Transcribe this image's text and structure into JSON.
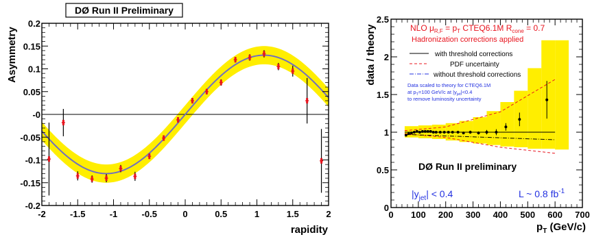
{
  "chart_data": [
    {
      "type": "scatter",
      "title": "DØ Run II Preliminary",
      "xlabel": "rapidity",
      "ylabel": "Asymmetry",
      "xlim": [
        -2,
        2
      ],
      "ylim": [
        -0.2,
        0.2
      ],
      "xticks": [
        -2,
        -1.5,
        -1,
        -0.5,
        0,
        0.5,
        1,
        1.5,
        2
      ],
      "xtick_labels": [
        "-2",
        "-1.5",
        "-1",
        "-0.5",
        "0",
        "0.5",
        "1",
        "1.5",
        "2"
      ],
      "yticks": [
        -0.2,
        -0.15,
        -0.1,
        -0.05,
        0,
        0.05,
        0.1,
        0.15,
        0.2
      ],
      "ytick_labels": [
        "-0.2",
        "-0.15",
        "-0.1",
        "-0.05",
        "-0",
        "0.05",
        "0.1",
        "0.15",
        "0.2"
      ],
      "fit_amplitude": 0.13,
      "fit_x_at_max": 1.1,
      "band_halfwidth": 0.02,
      "colors": {
        "band": "#ffee00",
        "fit": "#7070c0",
        "points": "#e8141e",
        "errors": "#000000"
      },
      "points": [
        {
          "x": -1.9,
          "y": -0.098,
          "err": 0.08
        },
        {
          "x": -1.7,
          "y": -0.018,
          "err": 0.03
        },
        {
          "x": -1.5,
          "y": -0.135,
          "err": 0.01
        },
        {
          "x": -1.3,
          "y": -0.142,
          "err": 0.008
        },
        {
          "x": -1.1,
          "y": -0.14,
          "err": 0.009
        },
        {
          "x": -0.9,
          "y": -0.119,
          "err": 0.008
        },
        {
          "x": -0.7,
          "y": -0.136,
          "err": 0.01
        },
        {
          "x": -0.5,
          "y": -0.092,
          "err": 0.006
        },
        {
          "x": -0.3,
          "y": -0.052,
          "err": 0.006
        },
        {
          "x": -0.1,
          "y": -0.012,
          "err": 0.005
        },
        {
          "x": 0.1,
          "y": 0.03,
          "err": 0.006
        },
        {
          "x": 0.3,
          "y": 0.05,
          "err": 0.006
        },
        {
          "x": 0.5,
          "y": 0.07,
          "err": 0.007
        },
        {
          "x": 0.7,
          "y": 0.12,
          "err": 0.006
        },
        {
          "x": 0.9,
          "y": 0.125,
          "err": 0.007
        },
        {
          "x": 1.1,
          "y": 0.133,
          "err": 0.008
        },
        {
          "x": 1.3,
          "y": 0.105,
          "err": 0.008
        },
        {
          "x": 1.5,
          "y": 0.095,
          "err": 0.012
        },
        {
          "x": 1.7,
          "y": 0.03,
          "err": 0.05
        },
        {
          "x": 1.9,
          "y": -0.102,
          "err": 0.07
        }
      ]
    },
    {
      "type": "scatter",
      "xlabel": "p",
      "xlabel_sub": "T",
      "xlabel_unit": " (GeV/c)",
      "ylabel": "data / theory",
      "xlim": [
        0,
        700
      ],
      "ylim": [
        0,
        2.5
      ],
      "xticks": [
        0,
        100,
        200,
        300,
        400,
        500,
        600,
        700
      ],
      "xtick_labels": [
        "0",
        "100",
        "200",
        "300",
        "400",
        "500",
        "600",
        "700"
      ],
      "yticks": [
        0,
        0.5,
        1,
        1.5,
        2,
        2.5
      ],
      "ytick_labels": [
        "0",
        "0.5",
        "1",
        "1.5",
        "2",
        "2.5"
      ],
      "colors": {
        "band": "#ffee00",
        "points": "#000000",
        "pdf": "#e8141e"
      },
      "annotations": {
        "nlo_prefix": "NLO  μ",
        "nlo_sub": "R,F",
        "nlo_mid": " = p",
        "nlo_sub2": "T",
        "nlo_pdf": "  CTEQ6.1M   R",
        "nlo_sub3": "cone",
        "nlo_end": " = 0.7",
        "hadronization": "Hadronization corrections applied",
        "scaled_1": "Data scaled to theory for CTEQ6.1M",
        "scaled_2a": "at p",
        "scaled_2sub": "T",
        "scaled_2b": "=100 GeV/c at |y",
        "scaled_2sub2": "jet",
        "scaled_2c": "|<0.4",
        "scaled_3": "to remove luminosity uncertainty",
        "experiment": "DØ Run II preliminary",
        "yjet_a": "|y",
        "yjet_sub": "jet",
        "yjet_b": "| < 0.4",
        "lumi": "L ~ 0.8 fb",
        "lumi_sup": "-1"
      },
      "legend": [
        {
          "label": "with threshold corrections",
          "style": "solid"
        },
        {
          "label": "PDF uncertainty",
          "style": "dashed"
        },
        {
          "label": "without threshold corrections",
          "style": "dashdot"
        }
      ],
      "band": [
        {
          "x0": 50,
          "x1": 100,
          "lo": 0.93,
          "hi": 1.08
        },
        {
          "x0": 100,
          "x1": 150,
          "lo": 0.92,
          "hi": 1.09
        },
        {
          "x0": 150,
          "x1": 200,
          "lo": 0.91,
          "hi": 1.1
        },
        {
          "x0": 200,
          "x1": 250,
          "lo": 0.89,
          "hi": 1.12
        },
        {
          "x0": 250,
          "x1": 300,
          "lo": 0.87,
          "hi": 1.15
        },
        {
          "x0": 300,
          "x1": 350,
          "lo": 0.85,
          "hi": 1.2
        },
        {
          "x0": 350,
          "x1": 400,
          "lo": 0.83,
          "hi": 1.28
        },
        {
          "x0": 400,
          "x1": 450,
          "lo": 0.81,
          "hi": 1.4
        },
        {
          "x0": 450,
          "x1": 500,
          "lo": 0.8,
          "hi": 1.55
        },
        {
          "x0": 500,
          "x1": 550,
          "lo": 0.78,
          "hi": 1.85
        },
        {
          "x0": 550,
          "x1": 600,
          "lo": 0.78,
          "hi": 2.22
        },
        {
          "x0": 600,
          "x1": 650,
          "lo": 0.77,
          "hi": 2.22
        }
      ],
      "threshold_line": {
        "x0": 50,
        "x1": 600,
        "y": 1.0
      },
      "nothreshold_line": {
        "x0": 50,
        "x1": 600,
        "y0": 0.97,
        "y1": 0.9
      },
      "pdf_upper": [
        [
          50,
          1.02
        ],
        [
          200,
          1.07
        ],
        [
          400,
          1.27
        ],
        [
          600,
          1.7
        ]
      ],
      "pdf_lower": [
        [
          50,
          0.98
        ],
        [
          200,
          0.93
        ],
        [
          400,
          0.8
        ],
        [
          600,
          0.72
        ]
      ],
      "points": [
        {
          "x": 55,
          "y": 0.96,
          "err": 0.01
        },
        {
          "x": 65,
          "y": 0.98,
          "err": 0.01
        },
        {
          "x": 75,
          "y": 0.99,
          "err": 0.01
        },
        {
          "x": 85,
          "y": 1.0,
          "err": 0.01
        },
        {
          "x": 95,
          "y": 1.01,
          "err": 0.01
        },
        {
          "x": 105,
          "y": 1.0,
          "err": 0.01
        },
        {
          "x": 115,
          "y": 1.01,
          "err": 0.01
        },
        {
          "x": 125,
          "y": 1.01,
          "err": 0.01
        },
        {
          "x": 135,
          "y": 1.01,
          "err": 0.01
        },
        {
          "x": 145,
          "y": 1.01,
          "err": 0.01
        },
        {
          "x": 155,
          "y": 1.0,
          "err": 0.01
        },
        {
          "x": 165,
          "y": 1.0,
          "err": 0.01
        },
        {
          "x": 180,
          "y": 1.0,
          "err": 0.01
        },
        {
          "x": 195,
          "y": 1.0,
          "err": 0.01
        },
        {
          "x": 210,
          "y": 1.0,
          "err": 0.01
        },
        {
          "x": 225,
          "y": 1.0,
          "err": 0.01
        },
        {
          "x": 245,
          "y": 1.0,
          "err": 0.015
        },
        {
          "x": 265,
          "y": 0.99,
          "err": 0.015
        },
        {
          "x": 290,
          "y": 1.0,
          "err": 0.02
        },
        {
          "x": 320,
          "y": 0.99,
          "err": 0.02
        },
        {
          "x": 350,
          "y": 1.0,
          "err": 0.03
        },
        {
          "x": 385,
          "y": 1.0,
          "err": 0.04
        },
        {
          "x": 420,
          "y": 1.07,
          "err": 0.05
        },
        {
          "x": 470,
          "y": 1.17,
          "err": 0.09
        },
        {
          "x": 570,
          "y": 1.43,
          "err": 0.25
        }
      ]
    }
  ]
}
